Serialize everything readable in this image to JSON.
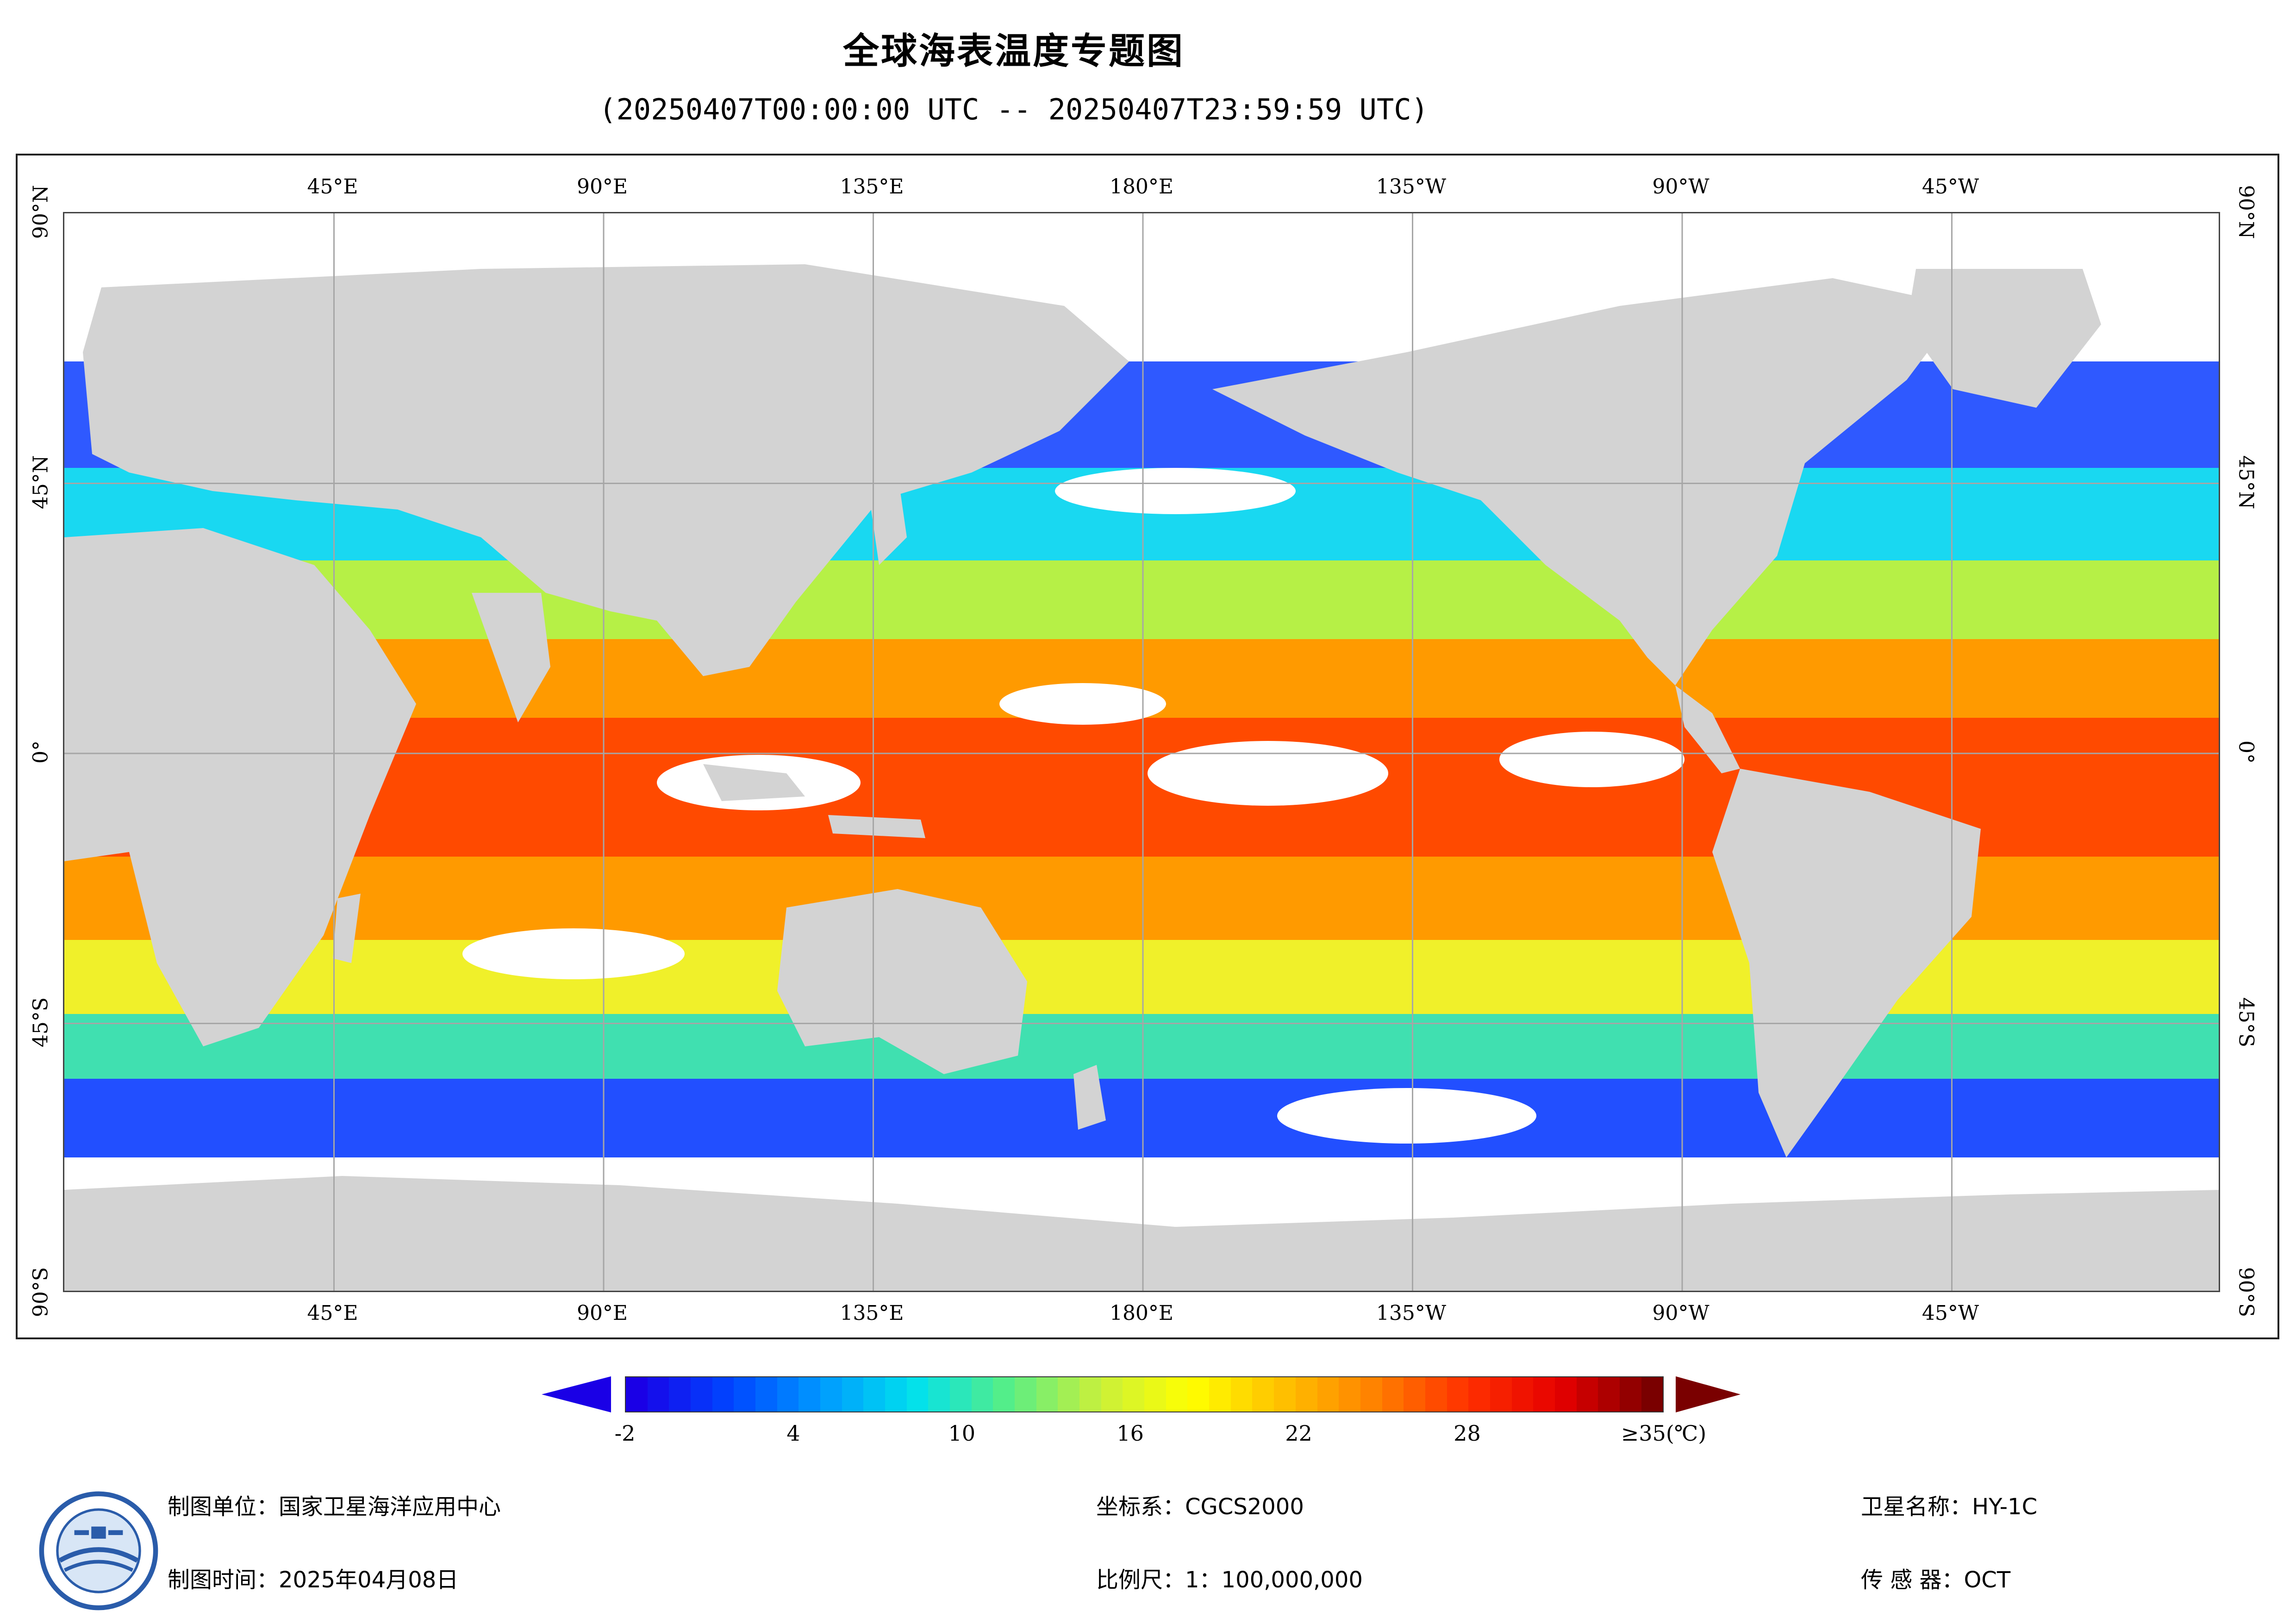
{
  "header": {
    "title": "全球海表温度专题图",
    "subtitle": "(20250407T00:00:00 UTC -- 20250407T23:59:59 UTC)"
  },
  "map": {
    "longitude_labels": [
      "45°E",
      "90°E",
      "135°E",
      "180°E",
      "135°W",
      "90°W",
      "45°W"
    ],
    "latitude_labels": [
      "90°N",
      "45°N",
      "0°",
      "45°S",
      "90°S"
    ],
    "colors": {
      "land": "#d3d3d3",
      "no_data": "#ffffff",
      "grid": "#a6a6a6"
    },
    "central_meridian": "180°E",
    "extent": {
      "lon": [
        -0.0,
        360.0
      ],
      "lat": [
        -90,
        90
      ]
    }
  },
  "colorbar": {
    "labels": [
      "-2",
      "4",
      "10",
      "16",
      "22",
      "28",
      "≥35(℃)"
    ],
    "min": -2,
    "max": 35,
    "colors": [
      "#1a00e6",
      "#0044ff",
      "#0099ff",
      "#00e0ee",
      "#55ee88",
      "#c8f03c",
      "#ffff00",
      "#ffc000",
      "#ff8000",
      "#ff3000",
      "#e60000",
      "#7a0000"
    ]
  },
  "footer": {
    "unit": "制图单位：国家卫星海洋应用中心",
    "time": "制图时间：2025年04月08日",
    "coordinate_system": "坐标系：CGCS2000",
    "scale": "比例尺：1：100,000,000",
    "satellite": "卫星名称：HY-1C",
    "sensor": "传 感 器：OCT"
  }
}
